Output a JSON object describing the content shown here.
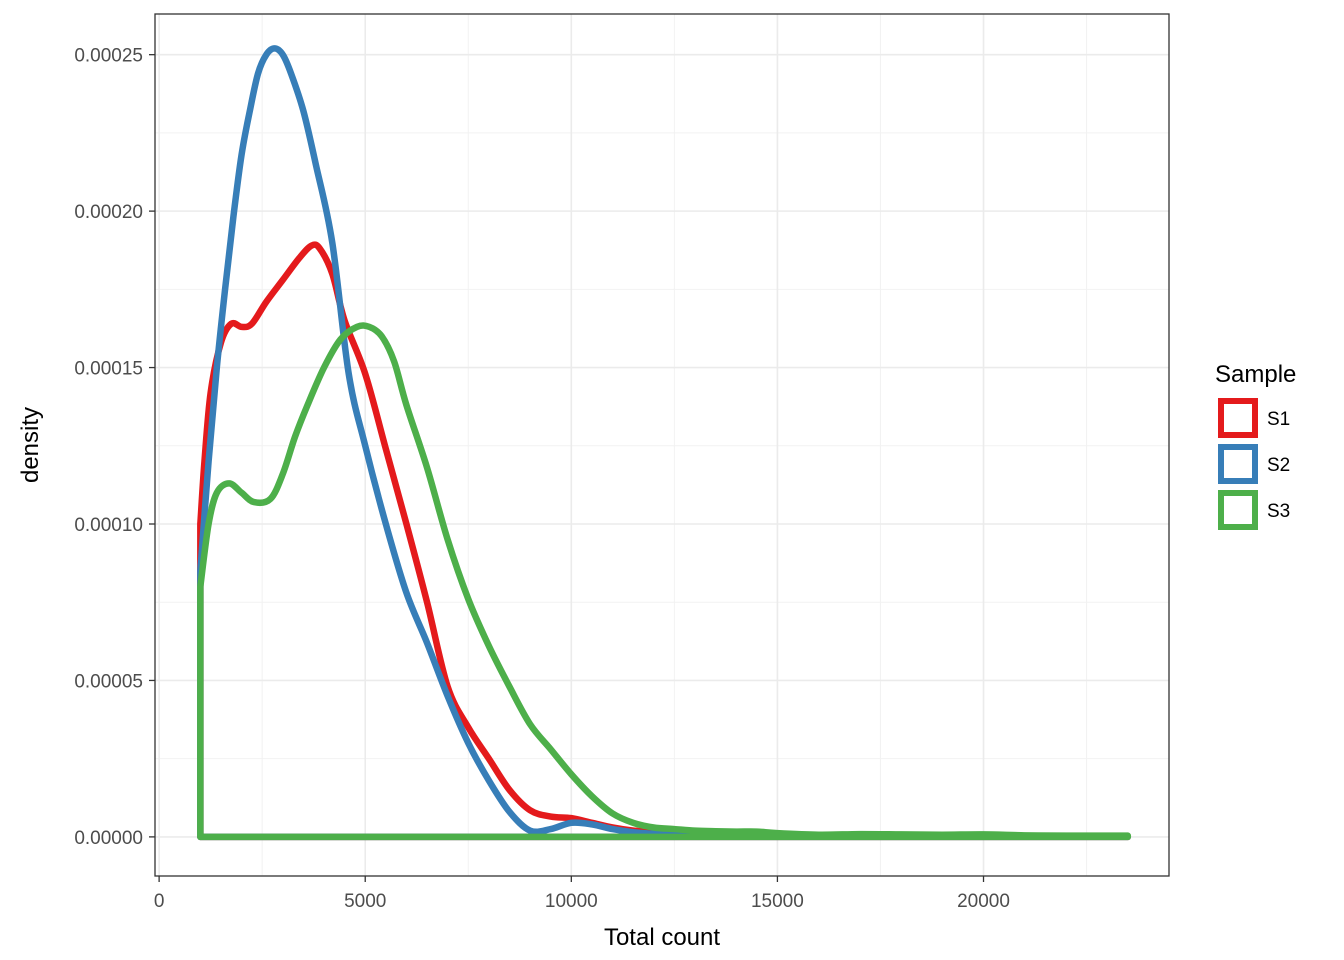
{
  "chart_data": {
    "type": "line",
    "subtype": "density",
    "xlabel": "Total count",
    "ylabel": "density",
    "xlim": [
      -100,
      24500
    ],
    "ylim": [
      -1.25e-05,
      0.000263
    ],
    "x_ticks": [
      0,
      5000,
      10000,
      15000,
      20000
    ],
    "x_tick_labels": [
      "0",
      "5000",
      "10000",
      "15000",
      "20000"
    ],
    "y_ticks": [
      0,
      5e-05,
      0.0001,
      0.00015,
      0.0002,
      0.00025
    ],
    "y_tick_labels": [
      "0.00000",
      "0.00005",
      "0.00010",
      "0.00015",
      "0.00020",
      "0.00025"
    ],
    "grid": true,
    "legend": {
      "title": "Sample",
      "placement": "right",
      "entries": [
        "S1",
        "S2",
        "S3"
      ]
    },
    "series": [
      {
        "name": "S1",
        "color": "#E41A1C",
        "x": [
          1000,
          1100,
          1250,
          1500,
          1750,
          2000,
          2250,
          2600,
          3000,
          3400,
          3700,
          3900,
          4200,
          4500,
          5000,
          5500,
          6000,
          6500,
          7000,
          7500,
          8000,
          8500,
          9000,
          9500,
          10000,
          10500,
          11000,
          11500,
          12000,
          12500,
          13000,
          14000,
          16000,
          18000,
          20000,
          22000,
          23500
        ],
        "values": [
          0.0001,
          0.00012,
          0.000142,
          0.000158,
          0.000164,
          0.000163,
          0.000164,
          0.000171,
          0.000178,
          0.000185,
          0.000189,
          0.000188,
          0.00018,
          0.000165,
          0.000148,
          0.000124,
          0.0001,
          7.5e-05,
          4.8e-05,
          3.5e-05,
          2.5e-05,
          1.5e-05,
          8.5e-06,
          6.5e-06,
          6e-06,
          4.5e-06,
          3e-06,
          2e-06,
          1.5e-06,
          1.2e-06,
          1e-06,
          8e-07,
          5e-07,
          4e-07,
          4e-07,
          3e-07,
          2e-07
        ]
      },
      {
        "name": "S2",
        "color": "#377EB8",
        "x": [
          1000,
          1200,
          1400,
          1600,
          1800,
          2000,
          2200,
          2400,
          2600,
          2800,
          3000,
          3200,
          3500,
          3800,
          4200,
          4600,
          5000,
          5500,
          6000,
          6500,
          7000,
          7500,
          8000,
          8500,
          9000,
          9500,
          10000,
          10500,
          11000,
          11500,
          12000,
          13000,
          15000,
          18000,
          23500
        ],
        "values": [
          8.5e-05,
          0.00012,
          0.00015,
          0.000175,
          0.000198,
          0.000218,
          0.000232,
          0.000244,
          0.00025,
          0.000252,
          0.00025,
          0.000244,
          0.000232,
          0.000215,
          0.00019,
          0.000148,
          0.000125,
          0.0001,
          7.8e-05,
          6.2e-05,
          4.5e-05,
          3e-05,
          1.8e-05,
          8e-06,
          2e-06,
          2.5e-06,
          4.5e-06,
          4e-06,
          2.5e-06,
          1.5e-06,
          1e-06,
          5e-07,
          2e-07,
          1e-07,
          1e-07
        ]
      },
      {
        "name": "S3",
        "color": "#4DAF4A",
        "x": [
          1000,
          1200,
          1400,
          1700,
          2000,
          2300,
          2700,
          3000,
          3300,
          3600,
          4000,
          4400,
          4800,
          5100,
          5400,
          5700,
          6000,
          6500,
          7000,
          7500,
          8000,
          8500,
          9000,
          9500,
          10000,
          10500,
          11000,
          11500,
          12000,
          12500,
          13000,
          13500,
          14000,
          14500,
          15000,
          16000,
          17000,
          18000,
          19000,
          20000,
          21000,
          22000,
          23500
        ],
        "values": [
          8e-05,
          0.0001,
          0.00011,
          0.000113,
          0.00011,
          0.000107,
          0.000108,
          0.000116,
          0.000128,
          0.000138,
          0.00015,
          0.000159,
          0.000163,
          0.000163,
          0.00016,
          0.000152,
          0.000138,
          0.000118,
          9.5e-05,
          7.6e-05,
          6.1e-05,
          4.8e-05,
          3.6e-05,
          2.8e-05,
          2e-05,
          1.3e-05,
          7.5e-06,
          4.5e-06,
          3e-06,
          2.5e-06,
          2e-06,
          1.8e-06,
          1.7e-06,
          1.7e-06,
          1.2e-06,
          7e-07,
          9e-07,
          8e-07,
          7e-07,
          8e-07,
          5e-07,
          4e-07,
          4e-07
        ]
      }
    ]
  }
}
